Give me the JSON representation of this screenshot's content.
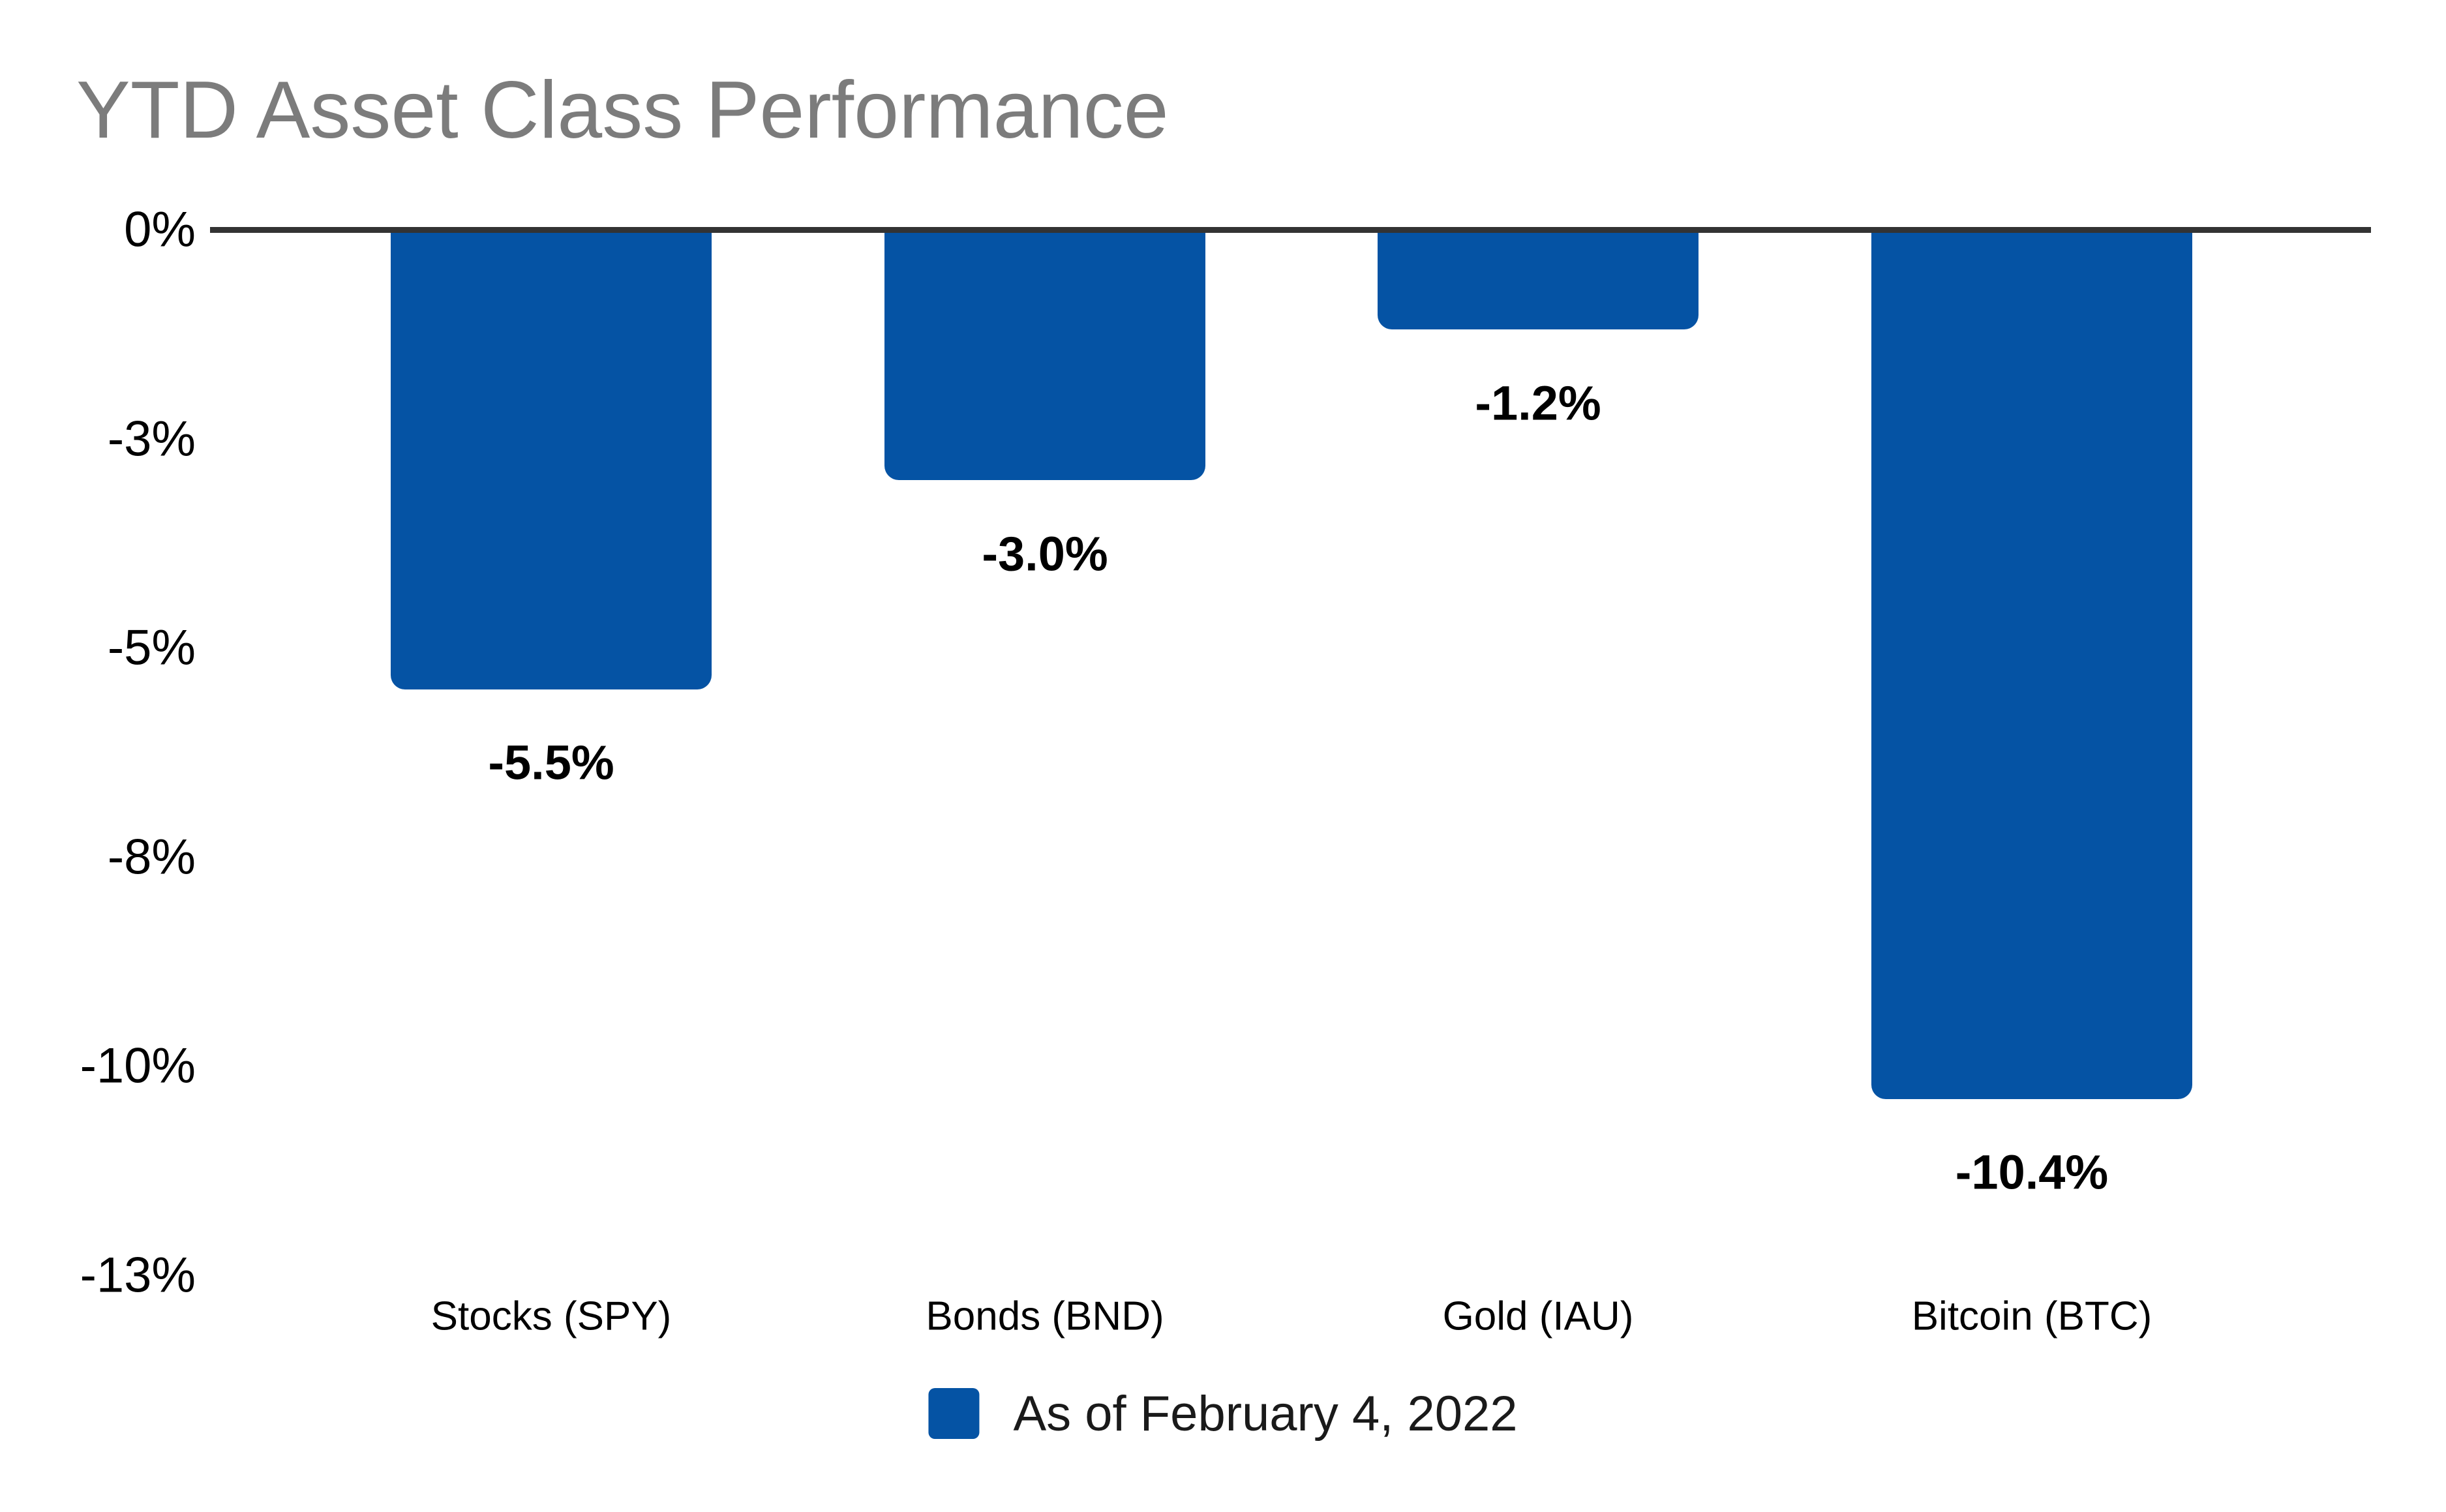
{
  "title": {
    "color": "#7c7c7c"
  },
  "colors": {
    "bar": "#0553a4",
    "axis_line": "#333333",
    "text": "#000000",
    "title": "#7c7c7c"
  },
  "chart_data": {
    "type": "bar",
    "title": "YTD Asset Class Performance",
    "categories": [
      "Stocks (SPY)",
      "Bonds (BND)",
      "Gold (IAU)",
      "Bitcoin (BTC)"
    ],
    "values": [
      -5.5,
      -3.0,
      -1.2,
      -10.4
    ],
    "data_labels": [
      "-5.5%",
      "-3.0%",
      "-1.2%",
      "-10.4%"
    ],
    "xlabel": "",
    "ylabel": "",
    "ylim": [
      -13.75,
      0
    ],
    "y_ticks": [
      {
        "value": 0,
        "label": "0%"
      },
      {
        "value": -2.5,
        "label": "-3%"
      },
      {
        "value": -5,
        "label": "-5%"
      },
      {
        "value": -7.5,
        "label": "-8%"
      },
      {
        "value": -10,
        "label": "-10%"
      },
      {
        "value": -12.5,
        "label": "-13%"
      }
    ],
    "grid": false,
    "bar_color": "#0553a4",
    "legend": {
      "position": "bottom-center",
      "entries": [
        "As of February 4, 2022"
      ]
    }
  }
}
